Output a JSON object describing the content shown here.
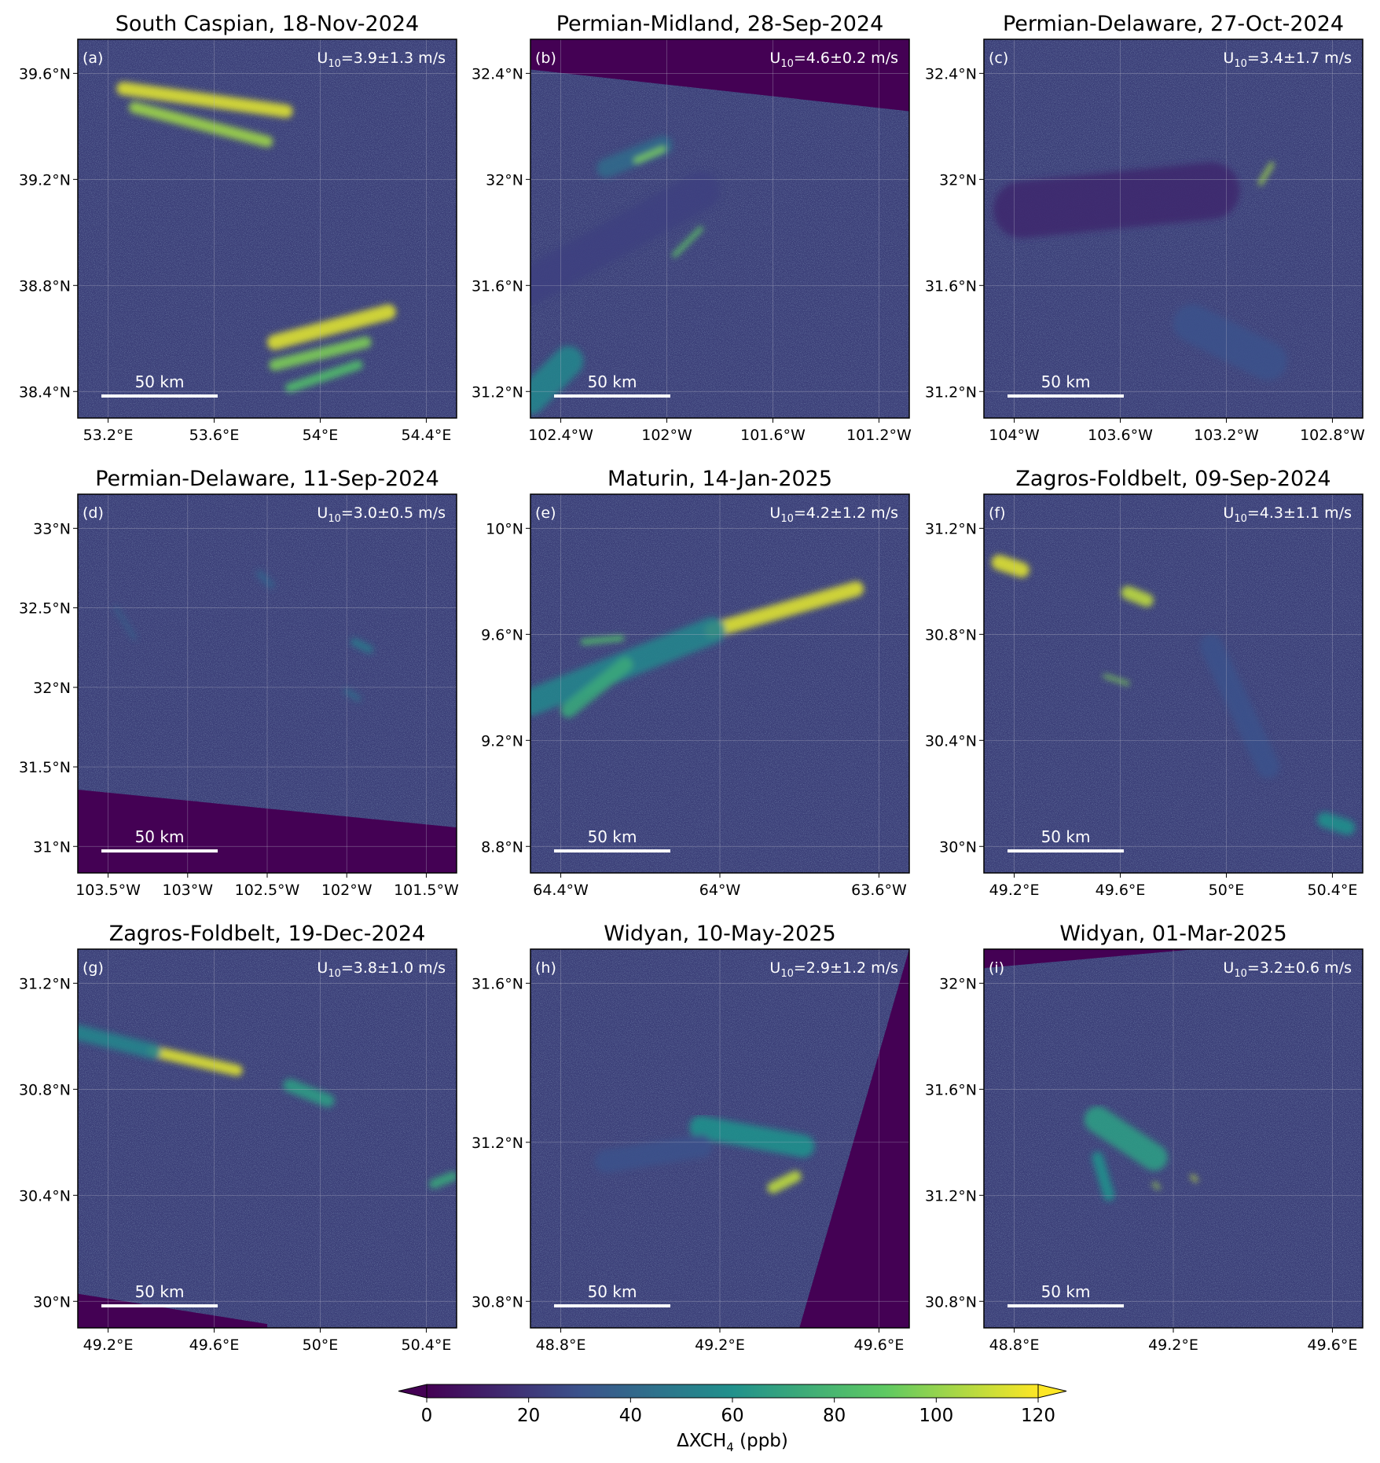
{
  "figure": {
    "panels": [
      {
        "title": "South Caspian, 18-Nov-2024",
        "label": "(a)",
        "wind": {
          "prefix": "U",
          "sub": "10",
          "value": "=3.9±1.3 m/s"
        },
        "scale_label": "50 km",
        "lat_ticks": [
          "39.6°N",
          "39.2°N",
          "38.8°N",
          "38.4°N"
        ],
        "lon_ticks": [
          "53.2°E",
          "53.6°E",
          "54°E",
          "54.4°E"
        ],
        "plumes": [
          {
            "a": [
              0.12,
              0.13
            ],
            "b": [
              0.55,
              0.19
            ],
            "w": 0.035,
            "i": 0.95
          },
          {
            "a": [
              0.15,
              0.18
            ],
            "b": [
              0.5,
              0.27
            ],
            "w": 0.03,
            "i": 0.85
          },
          {
            "a": [
              0.52,
              0.8
            ],
            "b": [
              0.82,
              0.72
            ],
            "w": 0.04,
            "i": 0.95
          },
          {
            "a": [
              0.52,
              0.86
            ],
            "b": [
              0.76,
              0.8
            ],
            "w": 0.03,
            "i": 0.8
          },
          {
            "a": [
              0.56,
              0.92
            ],
            "b": [
              0.74,
              0.86
            ],
            "w": 0.025,
            "i": 0.7
          }
        ],
        "mask": []
      },
      {
        "title": "Permian-Midland, 28-Sep-2024",
        "label": "(b)",
        "wind": {
          "prefix": "U",
          "sub": "10",
          "value": "=4.6±0.2 m/s"
        },
        "scale_label": "50 km",
        "lat_ticks": [
          "32.4°N",
          "32°N",
          "31.6°N",
          "31.2°N"
        ],
        "lon_ticks": [
          "102.4°W",
          "102°W",
          "101.6°W",
          "101.2°W"
        ],
        "plumes": [
          {
            "a": [
              0.2,
              0.34
            ],
            "b": [
              0.35,
              0.28
            ],
            "w": 0.05,
            "i": 0.35
          },
          {
            "a": [
              0.28,
              0.32
            ],
            "b": [
              0.35,
              0.29
            ],
            "w": 0.015,
            "i": 0.8
          },
          {
            "a": [
              0.38,
              0.57
            ],
            "b": [
              0.45,
              0.5
            ],
            "w": 0.012,
            "i": 0.75
          },
          {
            "a": [
              0.0,
              0.95
            ],
            "b": [
              0.1,
              0.85
            ],
            "w": 0.08,
            "i": 0.45
          },
          {
            "a": [
              0.0,
              0.65
            ],
            "b": [
              0.45,
              0.4
            ],
            "w": 0.1,
            "i": 0.2
          }
        ],
        "mask": [
          [
            0,
            0
          ],
          [
            1,
            0
          ],
          [
            1,
            0.19
          ],
          [
            0,
            0.08
          ]
        ]
      },
      {
        "title": "Permian-Delaware, 27-Oct-2024",
        "label": "(c)",
        "wind": {
          "prefix": "U",
          "sub": "10",
          "value": "=3.4±1.7 m/s"
        },
        "scale_label": "50 km",
        "lat_ticks": [
          "32.4°N",
          "32°N",
          "31.6°N",
          "31.2°N"
        ],
        "lon_ticks": [
          "104°W",
          "103.6°W",
          "103.2°W",
          "102.8°W"
        ],
        "plumes": [
          {
            "a": [
              0.73,
              0.38
            ],
            "b": [
              0.76,
              0.33
            ],
            "w": 0.012,
            "i": 0.85
          },
          {
            "a": [
              0.55,
              0.75
            ],
            "b": [
              0.75,
              0.85
            ],
            "w": 0.1,
            "i": 0.25
          },
          {
            "a": [
              0.1,
              0.45
            ],
            "b": [
              0.6,
              0.4
            ],
            "w": 0.15,
            "i": 0.12
          }
        ],
        "mask": []
      },
      {
        "title": "Permian-Delaware, 11-Sep-2024",
        "label": "(d)",
        "wind": {
          "prefix": "U",
          "sub": "10",
          "value": "=3.0±0.5 m/s"
        },
        "scale_label": "50 km",
        "lat_ticks": [
          "33°N",
          "32.5°N",
          "32°N",
          "31.5°N",
          "31°N"
        ],
        "lon_ticks": [
          "103.5°W",
          "103°W",
          "102.5°W",
          "102°W",
          "101.5°W"
        ],
        "plumes": [
          {
            "a": [
              0.73,
              0.39
            ],
            "b": [
              0.77,
              0.41
            ],
            "w": 0.02,
            "i": 0.4
          },
          {
            "a": [
              0.71,
              0.52
            ],
            "b": [
              0.74,
              0.54
            ],
            "w": 0.015,
            "i": 0.35
          },
          {
            "a": [
              0.48,
              0.21
            ],
            "b": [
              0.51,
              0.24
            ],
            "w": 0.02,
            "i": 0.3
          },
          {
            "a": [
              0.1,
              0.3
            ],
            "b": [
              0.15,
              0.38
            ],
            "w": 0.01,
            "i": 0.3
          }
        ],
        "mask": [
          [
            0,
            0.78
          ],
          [
            1,
            0.88
          ],
          [
            1,
            1
          ],
          [
            0,
            1
          ]
        ]
      },
      {
        "title": "Maturin, 14-Jan-2025",
        "label": "(e)",
        "wind": {
          "prefix": "U",
          "sub": "10",
          "value": "=4.2±1.2 m/s"
        },
        "scale_label": "50 km",
        "lat_ticks": [
          "10°N",
          "9.6°N",
          "9.2°N",
          "8.8°N"
        ],
        "lon_ticks": [
          "64.4°W",
          "64°W",
          "63.6°W"
        ],
        "plumes": [
          {
            "a": [
              0.48,
              0.36
            ],
            "b": [
              0.86,
              0.25
            ],
            "w": 0.04,
            "i": 0.95
          },
          {
            "a": [
              0.0,
              0.55
            ],
            "b": [
              0.48,
              0.36
            ],
            "w": 0.07,
            "i": 0.45
          },
          {
            "a": [
              0.1,
              0.57
            ],
            "b": [
              0.25,
              0.45
            ],
            "w": 0.04,
            "i": 0.6
          },
          {
            "a": [
              0.14,
              0.39
            ],
            "b": [
              0.24,
              0.38
            ],
            "w": 0.015,
            "i": 0.7
          }
        ],
        "mask": []
      },
      {
        "title": "Zagros-Foldbelt, 09-Sep-2024",
        "label": "(f)",
        "wind": {
          "prefix": "U",
          "sub": "10",
          "value": "=4.3±1.1 m/s"
        },
        "scale_label": "50 km",
        "lat_ticks": [
          "31.2°N",
          "30.8°N",
          "30.4°N",
          "30°N"
        ],
        "lon_ticks": [
          "49.2°E",
          "49.6°E",
          "50°E",
          "50.4°E"
        ],
        "plumes": [
          {
            "a": [
              0.04,
              0.18
            ],
            "b": [
              0.1,
              0.2
            ],
            "w": 0.04,
            "i": 0.95
          },
          {
            "a": [
              0.38,
              0.26
            ],
            "b": [
              0.43,
              0.28
            ],
            "w": 0.035,
            "i": 0.9
          },
          {
            "a": [
              0.32,
              0.48
            ],
            "b": [
              0.38,
              0.5
            ],
            "w": 0.01,
            "i": 0.8
          },
          {
            "a": [
              0.9,
              0.86
            ],
            "b": [
              0.96,
              0.88
            ],
            "w": 0.04,
            "i": 0.5
          },
          {
            "a": [
              0.6,
              0.4
            ],
            "b": [
              0.75,
              0.72
            ],
            "w": 0.06,
            "i": 0.25
          }
        ],
        "mask": []
      },
      {
        "title": "Zagros-Foldbelt, 19-Dec-2024",
        "label": "(g)",
        "wind": {
          "prefix": "U",
          "sub": "10",
          "value": "=3.8±1.0 m/s"
        },
        "scale_label": "50 km",
        "lat_ticks": [
          "31.2°N",
          "30.8°N",
          "30.4°N",
          "30°N"
        ],
        "lon_ticks": [
          "49.2°E",
          "49.6°E",
          "50°E",
          "50.4°E"
        ],
        "plumes": [
          {
            "a": [
              0.2,
              0.27
            ],
            "b": [
              0.42,
              0.32
            ],
            "w": 0.03,
            "i": 0.95
          },
          {
            "a": [
              0.0,
              0.22
            ],
            "b": [
              0.2,
              0.27
            ],
            "w": 0.04,
            "i": 0.45
          },
          {
            "a": [
              0.56,
              0.36
            ],
            "b": [
              0.66,
              0.4
            ],
            "w": 0.035,
            "i": 0.55
          },
          {
            "a": [
              0.94,
              0.62
            ],
            "b": [
              0.99,
              0.6
            ],
            "w": 0.025,
            "i": 0.6
          }
        ],
        "mask": [
          [
            0,
            0.91
          ],
          [
            0.5,
            0.99
          ],
          [
            0.5,
            1
          ],
          [
            0,
            1
          ]
        ]
      },
      {
        "title": "Widyan, 10-May-2025",
        "label": "(h)",
        "wind": {
          "prefix": "U",
          "sub": "10",
          "value": "=2.9±1.2 m/s"
        },
        "scale_label": "50 km",
        "lat_ticks": [
          "31.6°N",
          "31.2°N",
          "30.8°N"
        ],
        "lon_ticks": [
          "48.8°E",
          "49.2°E",
          "49.6°E"
        ],
        "plumes": [
          {
            "a": [
              0.64,
              0.63
            ],
            "b": [
              0.7,
              0.6
            ],
            "w": 0.03,
            "i": 0.9
          },
          {
            "a": [
              0.45,
              0.47
            ],
            "b": [
              0.72,
              0.52
            ],
            "w": 0.06,
            "i": 0.5
          },
          {
            "a": [
              0.2,
              0.56
            ],
            "b": [
              0.45,
              0.52
            ],
            "w": 0.06,
            "i": 0.25
          }
        ],
        "mask": [
          [
            1,
            0
          ],
          [
            1,
            1
          ],
          [
            0.71,
            1
          ]
        ]
      },
      {
        "title": "Widyan, 01-Mar-2025",
        "label": "(i)",
        "wind": {
          "prefix": "U",
          "sub": "10",
          "value": "=3.2±0.6 m/s"
        },
        "scale_label": "50 km",
        "lat_ticks": [
          "32°N",
          "31.6°N",
          "31.2°N",
          "30.8°N"
        ],
        "lon_ticks": [
          "48.8°E",
          "49.2°E",
          "49.6°E"
        ],
        "plumes": [
          {
            "a": [
              0.3,
              0.45
            ],
            "b": [
              0.45,
              0.55
            ],
            "w": 0.07,
            "i": 0.55
          },
          {
            "a": [
              0.3,
              0.55
            ],
            "b": [
              0.33,
              0.65
            ],
            "w": 0.03,
            "i": 0.5
          },
          {
            "a": [
              0.55,
              0.6
            ],
            "b": [
              0.56,
              0.61
            ],
            "w": 0.01,
            "i": 0.9
          },
          {
            "a": [
              0.45,
              0.62
            ],
            "b": [
              0.46,
              0.63
            ],
            "w": 0.01,
            "i": 0.85
          }
        ],
        "mask": [
          [
            0,
            0
          ],
          [
            0.56,
            0.0
          ],
          [
            0,
            0.05
          ]
        ]
      }
    ],
    "colorbar": {
      "ticks": [
        "0",
        "20",
        "40",
        "60",
        "80",
        "100",
        "120"
      ],
      "range": [
        0,
        120
      ],
      "label_prefix": "ΔXCH",
      "label_sub": "4",
      "label_suffix": " (ppb)",
      "colormap": "viridis"
    }
  }
}
